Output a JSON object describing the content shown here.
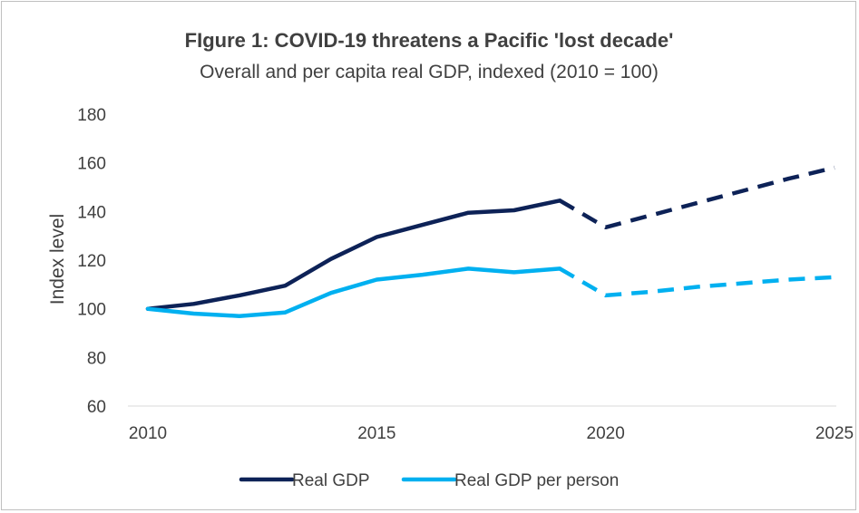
{
  "chart_data": {
    "type": "line",
    "title": "FIgure 1: COVID-19 threatens a Pacific 'lost decade'",
    "subtitle": "Overall and per capita real GDP, indexed (2010 = 100)",
    "xlabel": "",
    "ylabel": "Index level",
    "xlim": [
      2010,
      2025
    ],
    "ylim": [
      60,
      180
    ],
    "x_ticks": [
      "2010",
      "2015",
      "2020",
      "2025"
    ],
    "y_ticks": [
      "60",
      "80",
      "100",
      "120",
      "140",
      "160",
      "180"
    ],
    "grid": false,
    "legend_position": "bottom",
    "forecast_style": "dashed from 2019",
    "series": [
      {
        "name": "Real GDP",
        "color": "#0d2257",
        "x": [
          2010,
          2011,
          2012,
          2013,
          2014,
          2015,
          2016,
          2017,
          2018,
          2019,
          2020,
          2021,
          2022,
          2023,
          2024,
          2025
        ],
        "values": [
          100,
          102,
          105.5,
          109.5,
          120.5,
          129.5,
          134.5,
          139.5,
          140.5,
          144.5,
          133.5,
          138.5,
          143.5,
          148.5,
          153.5,
          158
        ]
      },
      {
        "name": "Real GDP per person",
        "color": "#00b0f0",
        "x": [
          2010,
          2011,
          2012,
          2013,
          2014,
          2015,
          2016,
          2017,
          2018,
          2019,
          2020,
          2021,
          2022,
          2023,
          2024,
          2025
        ],
        "values": [
          100,
          98,
          97,
          98.5,
          106.5,
          112,
          114,
          116.5,
          115,
          116.5,
          105.5,
          107,
          109,
          110.5,
          112,
          113
        ]
      }
    ]
  }
}
